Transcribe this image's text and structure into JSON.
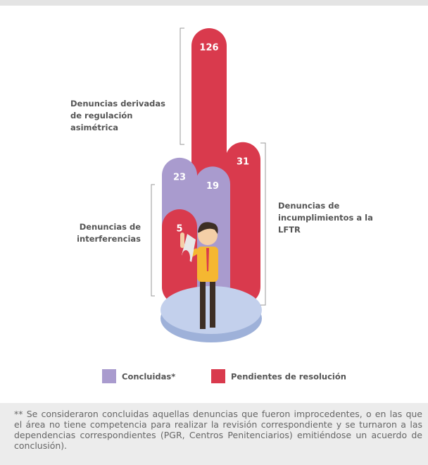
{
  "chart_data": {
    "type": "bar",
    "categories": [
      "Denuncias de interferencias",
      "Denuncias derivadas de regulación asimétrica",
      "Denuncias de incumplimientos a la LFTR"
    ],
    "series": [
      {
        "name": "Concluidas*",
        "color": "#a99bce",
        "values": [
          23,
          null,
          19
        ]
      },
      {
        "name": "Pendientes de resolución",
        "color": "#d93a4d",
        "values": [
          5,
          126,
          31
        ]
      }
    ]
  },
  "footnote": "** Se consideraron concluidas aquellas denuncias que fueron improcedentes, o en las que el área no tiene competencia para realizar la revisión correspondiente y se turnaron a las dependencias correspondientes (PGR, Centros Penitenciarios) emitiéndose un acuerdo de conclusión)."
}
